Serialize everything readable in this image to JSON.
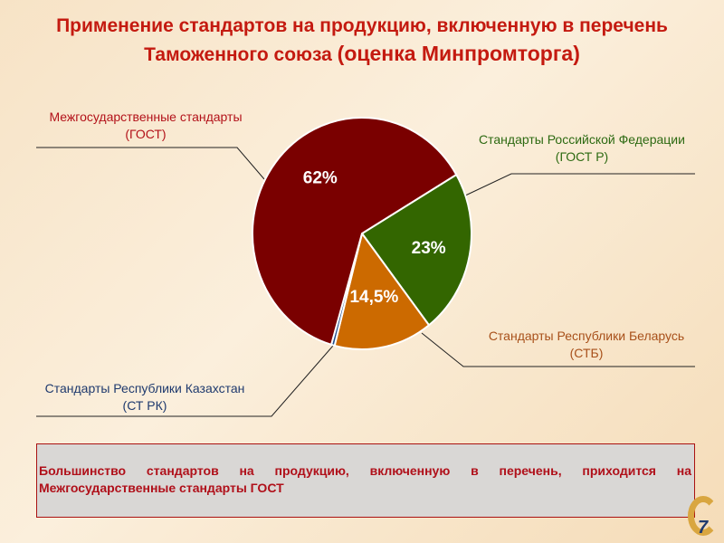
{
  "title": {
    "line1": "Применение стандартов на продукцию, включенную в перечень",
    "line2": "Таможенного союза",
    "line2_bold": "(оценка Минпромторга)"
  },
  "chart_data": {
    "type": "pie",
    "title": "Применение стандартов на продукцию, включенную в перечень Таможенного союза (оценка Минпромторга)",
    "slices": [
      {
        "name": "Стандарты Российской Федерации",
        "sub": "(ГОСТ Р)",
        "value": 23,
        "label": "23%",
        "color": "#336600"
      },
      {
        "name": "Стандарты Республики Беларусь",
        "sub": "(СТБ)",
        "value": 14.5,
        "label": "14,5%",
        "color": "#cc6a00"
      },
      {
        "name": "Стандарты Республики Казахстан",
        "sub": "(СТ РК)",
        "value": 0.5,
        "label": "",
        "color": "#1f4e8c"
      },
      {
        "name": "Межгосударственные стандарты",
        "sub": "(ГОСТ)",
        "value": 62,
        "label": "62%",
        "color": "#7a0000"
      }
    ],
    "legend": "callouts"
  },
  "note": "Большинство стандартов на продукцию, включенную в перечень, приходится на Межгосударственные стандарты ГОСТ",
  "page_number": "7"
}
